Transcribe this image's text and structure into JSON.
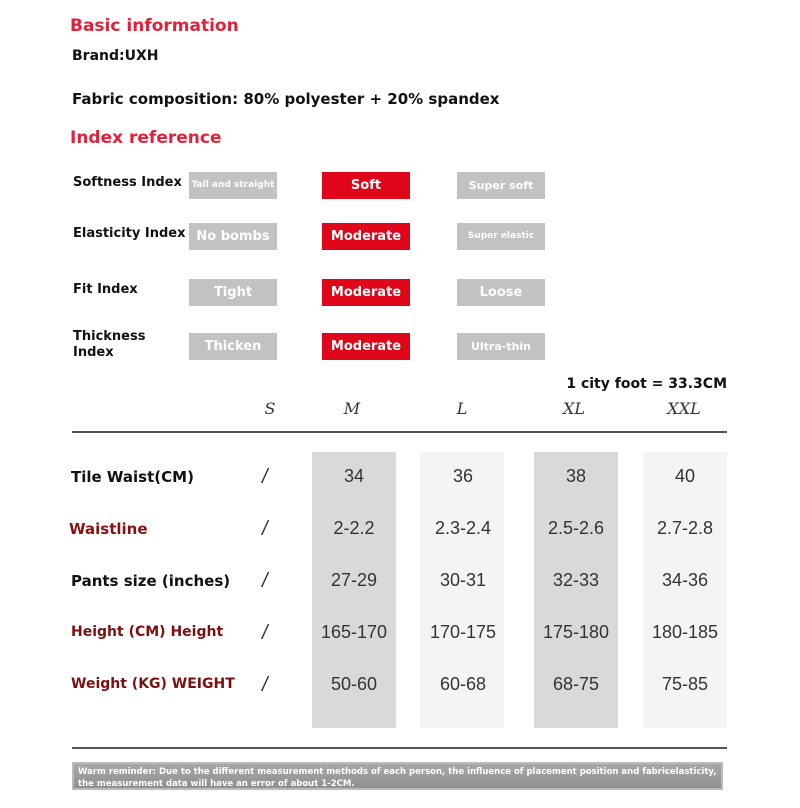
{
  "basic": {
    "title": "Basic information",
    "brand": "Brand:UXH",
    "fabric": "Fabric composition: 80% polyester + 20% spandex"
  },
  "index": {
    "title": "Index reference",
    "rows": [
      {
        "label": "Softness Index",
        "options": [
          "Tall and straight",
          "Soft",
          "Super soft"
        ],
        "selected": 1
      },
      {
        "label": "Elasticity Index",
        "options": [
          "No bombs",
          "Moderate",
          "Super elastic"
        ],
        "selected": 1
      },
      {
        "label": "Fit Index",
        "options": [
          "Tight",
          "Moderate",
          "Loose"
        ],
        "selected": 1
      },
      {
        "label": "Thickness Index",
        "options": [
          "Thicken",
          "Moderate",
          "Ultra-thin"
        ],
        "selected": 1
      }
    ],
    "colors": {
      "selected": "#e0061a",
      "unselected": "#c2c2c2"
    }
  },
  "size_table": {
    "note": "1 city foot = 33.3CM",
    "sizes": [
      "S",
      "M",
      "L",
      "XL",
      "XXL"
    ],
    "rows": [
      {
        "label": "Tile Waist(CM)",
        "values": [
          "/",
          "34",
          "36",
          "38",
          "40"
        ]
      },
      {
        "label": "Waistline",
        "values": [
          "/",
          "2-2.2",
          "2.3-2.4",
          "2.5-2.6",
          "2.7-2.8"
        ]
      },
      {
        "label": "Pants size (inches)",
        "values": [
          "/",
          "27-29",
          "30-31",
          "32-33",
          "34-36"
        ]
      },
      {
        "label": "Height (CM) Height",
        "values": [
          "/",
          "165-170",
          "170-175",
          "175-180",
          "180-185"
        ]
      },
      {
        "label": "Weight (KG) WEIGHT",
        "values": [
          "/",
          "50-60",
          "60-68",
          "68-75",
          "75-85"
        ]
      }
    ]
  },
  "reminder": "Warm reminder: Due to the different measurement methods of each person, the influence of placement position and fabricelasticity, the measurement data will have an error of about 1-2CM."
}
